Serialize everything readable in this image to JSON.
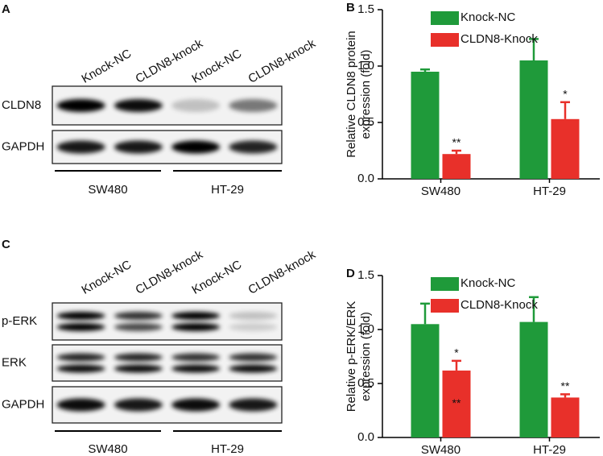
{
  "blots": [
    {
      "label": "A",
      "lanes": [
        "Knock-NC",
        "CLDN8-knock",
        "Knock-NC",
        "CLDN8-knock"
      ],
      "rows": [
        "CLDN8",
        "GAPDH"
      ],
      "groups": [
        "SW480",
        "HT-29"
      ]
    },
    {
      "label": "C",
      "lanes": [
        "Knock-NC",
        "CLDN8-knock",
        "Knock-NC",
        "CLDN8-knock"
      ],
      "rows": [
        "p-ERK",
        "ERK",
        "GAPDH"
      ],
      "groups": [
        "SW480",
        "HT-29"
      ]
    }
  ],
  "chart_data": [
    {
      "type": "bar",
      "label": "B",
      "ylabel": [
        "Relative CLDN8 protein",
        "expression (fold)"
      ],
      "categories": [
        "SW480",
        "HT-29"
      ],
      "ylim": [
        0,
        1.5
      ],
      "yticks": [
        {
          "value": 0,
          "label": "0.0"
        },
        0.5,
        {
          "value": 1,
          "label": "1.0"
        },
        1.5
      ],
      "series": [
        {
          "name": "Knock-NC",
          "color": "#1f9a3a",
          "values": [
            0.95,
            1.05
          ],
          "errors": [
            0.02,
            0.19
          ],
          "significance": [
            null,
            null
          ]
        },
        {
          "name": "CLDN8-Knock",
          "color": "#e8302a",
          "values": [
            0.22,
            0.53
          ],
          "errors": [
            0.03,
            0.15
          ],
          "significance": [
            "**",
            "*"
          ]
        }
      ]
    },
    {
      "type": "bar",
      "label": "D",
      "ylabel": [
        "Relative p-ERK/ERK",
        "expression (fold)"
      ],
      "categories": [
        "SW480",
        "HT-29"
      ],
      "ylim": [
        0,
        1.5
      ],
      "yticks": [
        {
          "value": 0,
          "label": "0.0"
        },
        0.5,
        {
          "value": 1,
          "label": "1.0"
        },
        1.5
      ],
      "series": [
        {
          "name": "Knock-NC",
          "color": "#1f9a3a",
          "values": [
            1.05,
            1.07
          ],
          "errors": [
            0.19,
            0.23
          ],
          "significance": [
            null,
            null
          ]
        },
        {
          "name": "CLDN8-Knock",
          "color": "#e8302a",
          "values": [
            0.62,
            0.37
          ],
          "errors": [
            0.09,
            0.03
          ],
          "significance": [
            "*",
            "**"
          ],
          "inner_significance": [
            "**",
            null
          ]
        }
      ]
    }
  ]
}
